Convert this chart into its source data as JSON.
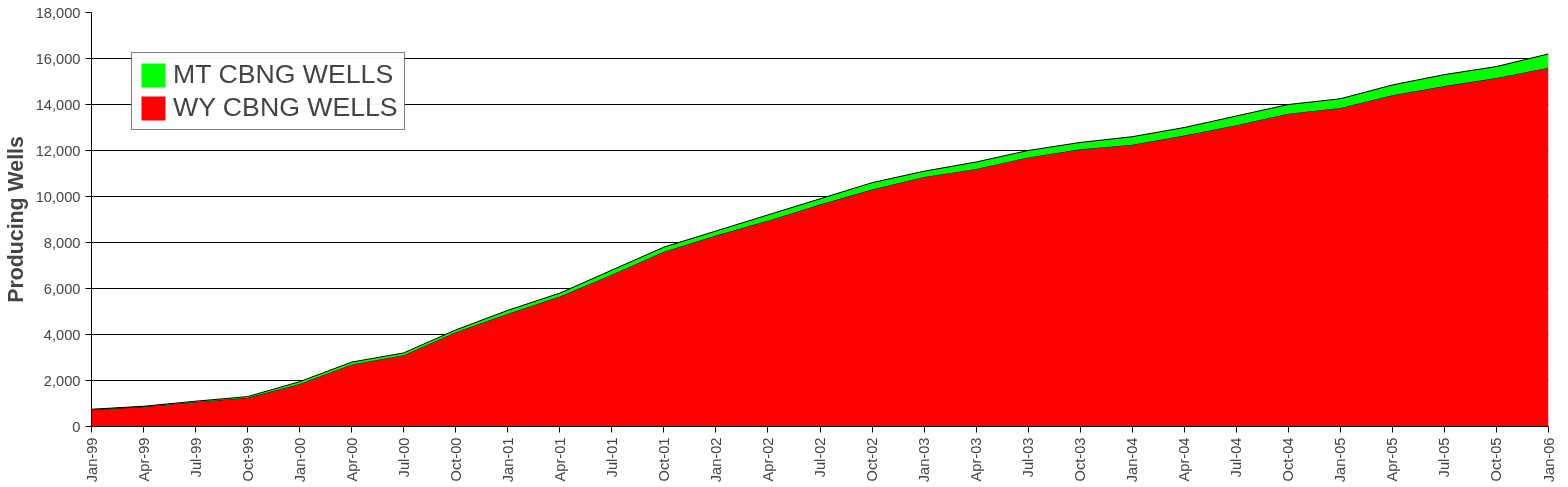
{
  "chart_data": {
    "type": "area",
    "stacked": true,
    "ylabel": "Producing Wells",
    "x": [
      "1999-01",
      "1999-04",
      "1999-07",
      "1999-10",
      "2000-01",
      "2000-04",
      "2000-07",
      "2000-10",
      "2001-01",
      "2001-04",
      "2001-07",
      "2001-10",
      "2002-01",
      "2002-04",
      "2002-07",
      "2002-10",
      "2003-01",
      "2003-04",
      "2003-07",
      "2003-10",
      "2004-01",
      "2004-04",
      "2004-07",
      "2004-10",
      "2005-01",
      "2005-04",
      "2005-07",
      "2005-10",
      "2006-01"
    ],
    "series": [
      {
        "name": "WY CBNG WELLS",
        "color": "#ff0000",
        "values": [
          730,
          860,
          1070,
          1250,
          1850,
          2700,
          3100,
          4100,
          4900,
          5650,
          6600,
          7600,
          8300,
          8950,
          9650,
          10300,
          10850,
          11200,
          11700,
          12050,
          12250,
          12650,
          13100,
          13600,
          13850,
          14400,
          14800,
          15150,
          15600
        ]
      },
      {
        "name": "MT CBNG WELLS",
        "color": "#00ff00",
        "values": [
          20,
          20,
          30,
          50,
          100,
          100,
          100,
          100,
          150,
          150,
          200,
          200,
          200,
          250,
          250,
          300,
          250,
          300,
          300,
          300,
          350,
          350,
          400,
          400,
          400,
          450,
          500,
          500,
          600
        ]
      }
    ],
    "xlim": [
      "1999-01",
      "2006-01"
    ],
    "xticks": [
      {
        "value": "1999-01",
        "label": "Jan-99"
      },
      {
        "value": "1999-04",
        "label": "Apr-99"
      },
      {
        "value": "1999-07",
        "label": "Jul-99"
      },
      {
        "value": "1999-10",
        "label": "Oct-99"
      },
      {
        "value": "2000-01",
        "label": "Jan-00"
      },
      {
        "value": "2000-04",
        "label": "Apr-00"
      },
      {
        "value": "2000-07",
        "label": "Jul-00"
      },
      {
        "value": "2000-10",
        "label": "Oct-00"
      },
      {
        "value": "2001-01",
        "label": "Jan-01"
      },
      {
        "value": "2001-04",
        "label": "Apr-01"
      },
      {
        "value": "2001-07",
        "label": "Jul-01"
      },
      {
        "value": "2001-10",
        "label": "Oct-01"
      },
      {
        "value": "2002-01",
        "label": "Jan-02"
      },
      {
        "value": "2002-04",
        "label": "Apr-02"
      },
      {
        "value": "2002-07",
        "label": "Jul-02"
      },
      {
        "value": "2002-10",
        "label": "Oct-02"
      },
      {
        "value": "2003-01",
        "label": "Jan-03"
      },
      {
        "value": "2003-04",
        "label": "Apr-03"
      },
      {
        "value": "2003-07",
        "label": "Jul-03"
      },
      {
        "value": "2003-10",
        "label": "Oct-03"
      },
      {
        "value": "2004-01",
        "label": "Jan-04"
      },
      {
        "value": "2004-04",
        "label": "Apr-04"
      },
      {
        "value": "2004-07",
        "label": "Jul-04"
      },
      {
        "value": "2004-10",
        "label": "Oct-04"
      },
      {
        "value": "2005-01",
        "label": "Jan-05"
      },
      {
        "value": "2005-04",
        "label": "Apr-05"
      },
      {
        "value": "2005-07",
        "label": "Jul-05"
      },
      {
        "value": "2005-10",
        "label": "Oct-05"
      },
      {
        "value": "2006-01",
        "label": "Jan-06"
      }
    ],
    "ylim": [
      0,
      18000
    ],
    "yticks": [
      {
        "value": 0,
        "label": "0"
      },
      {
        "value": 2000,
        "label": "2,000"
      },
      {
        "value": 4000,
        "label": "4,000"
      },
      {
        "value": 6000,
        "label": "6,000"
      },
      {
        "value": 8000,
        "label": "8,000"
      },
      {
        "value": 10000,
        "label": "10,000"
      },
      {
        "value": 12000,
        "label": "12,000"
      },
      {
        "value": 14000,
        "label": "14,000"
      },
      {
        "value": 16000,
        "label": "16,000"
      },
      {
        "value": 18000,
        "label": "18,000"
      }
    ],
    "grid": "y",
    "legend": "top left"
  }
}
